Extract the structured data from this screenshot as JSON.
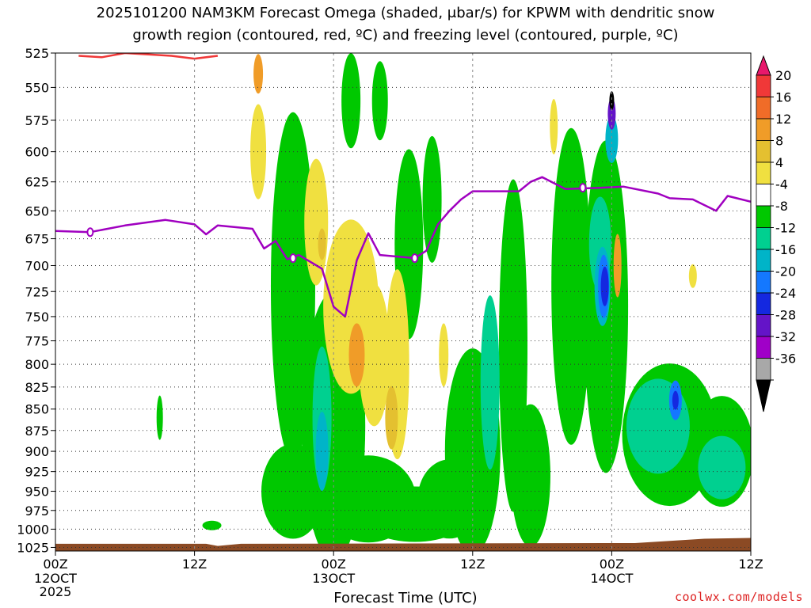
{
  "title_line1": "2025101200 NAM3KM Forecast Omega (shaded, μbar/s) for KPWM with dendritic snow",
  "title_line2": "growth region (contoured, red, ºC) and freezing level (contoured, purple, ºC)",
  "credit": "coolwx.com/models",
  "chart_data": {
    "type": "heatmap",
    "xlabel": "Forecast Time (UTC)",
    "ylabel": "",
    "x_ticks": [
      {
        "label": "00Z",
        "sub": "12OCT",
        "sub2": "2025",
        "hour": 0
      },
      {
        "label": "12Z",
        "sub": "",
        "sub2": "",
        "hour": 12
      },
      {
        "label": "00Z",
        "sub": "13OCT",
        "sub2": "",
        "hour": 24
      },
      {
        "label": "12Z",
        "sub": "",
        "sub2": "",
        "hour": 36
      },
      {
        "label": "00Z",
        "sub": "14OCT",
        "sub2": "",
        "hour": 48
      },
      {
        "label": "12Z",
        "sub": "",
        "sub2": "",
        "hour": 60
      }
    ],
    "xlim_hours": [
      0,
      60
    ],
    "y_levels_hpa": [
      525,
      550,
      575,
      600,
      625,
      650,
      675,
      700,
      725,
      750,
      775,
      800,
      825,
      850,
      875,
      900,
      925,
      950,
      975,
      1000,
      1025
    ],
    "ylim_hpa": [
      525,
      1030
    ],
    "y_scale": "log-pressure",
    "grid": true,
    "colorbar": {
      "labels": [
        "20",
        "16",
        "12",
        "8",
        "4",
        "-4",
        "-8",
        "-12",
        "-16",
        "-20",
        "-24",
        "-28",
        "-32",
        "-36"
      ],
      "colors": [
        "#e8186c",
        "#f03838",
        "#f06c28",
        "#f09c28",
        "#e4c030",
        "#f0e040",
        "#ffffff",
        "#00c800",
        "#00d090",
        "#00b4c8",
        "#1478ff",
        "#1428e0",
        "#6414c8",
        "#a000c8",
        "#a8a8a8",
        "#000000"
      ]
    },
    "freezing_level": {
      "label": "0",
      "color": "#a000c0",
      "points": [
        [
          0,
          668
        ],
        [
          3,
          669
        ],
        [
          6,
          663
        ],
        [
          9.5,
          658
        ],
        [
          12,
          662
        ],
        [
          13,
          671
        ],
        [
          14,
          663
        ],
        [
          17,
          666
        ],
        [
          18,
          684
        ],
        [
          19,
          677
        ],
        [
          20,
          694
        ],
        [
          21,
          690
        ],
        [
          23,
          703
        ],
        [
          24,
          740
        ],
        [
          25,
          750
        ],
        [
          26,
          695
        ],
        [
          27,
          670
        ],
        [
          28,
          690
        ],
        [
          31,
          693
        ],
        [
          32,
          686
        ],
        [
          33,
          662
        ],
        [
          34,
          650
        ],
        [
          35,
          640
        ],
        [
          36,
          633
        ],
        [
          40,
          633
        ],
        [
          41,
          625
        ],
        [
          42,
          621
        ],
        [
          44,
          631
        ],
        [
          47,
          630
        ],
        [
          49,
          629
        ],
        [
          52,
          635
        ],
        [
          53,
          639
        ],
        [
          55,
          640
        ],
        [
          57,
          650
        ],
        [
          58,
          637
        ],
        [
          60,
          642
        ]
      ]
    },
    "dgz_contour": {
      "color": "#f03838",
      "points": [
        [
          2,
          527
        ],
        [
          4,
          528
        ],
        [
          6,
          525
        ],
        [
          10,
          527
        ],
        [
          12,
          529
        ],
        [
          14,
          527
        ]
      ]
    },
    "ground_color": "#8b4a24"
  }
}
